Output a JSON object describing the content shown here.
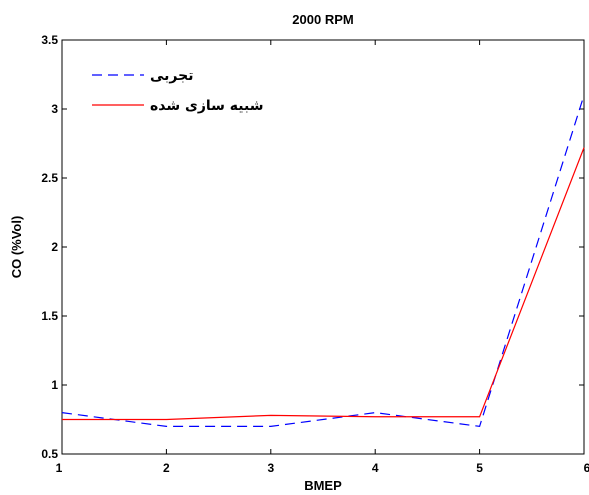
{
  "chart_data": {
    "type": "line",
    "title": "2000 RPM",
    "xlabel": "BMEP",
    "ylabel": "CO (%Vol)",
    "xlim": [
      1,
      6
    ],
    "ylim": [
      0.5,
      3.5
    ],
    "x_ticks": [
      "1",
      "2",
      "3",
      "4",
      "5",
      "6"
    ],
    "y_ticks": [
      "0.5",
      "1",
      "1.5",
      "2",
      "2.5",
      "3",
      "3.5"
    ],
    "grid": false,
    "legend_position": "top-left",
    "x": [
      1,
      2,
      3,
      4,
      5,
      6
    ],
    "series": [
      {
        "name": "تجربی",
        "color": "#0000ff",
        "line_style": "dashed",
        "values": [
          0.8,
          0.7,
          0.7,
          0.8,
          0.7,
          3.1
        ]
      },
      {
        "name": "شبیه سازی شده",
        "color": "#ff0000",
        "line_style": "solid",
        "values": [
          0.75,
          0.75,
          0.78,
          0.77,
          0.77,
          2.72
        ]
      }
    ]
  }
}
